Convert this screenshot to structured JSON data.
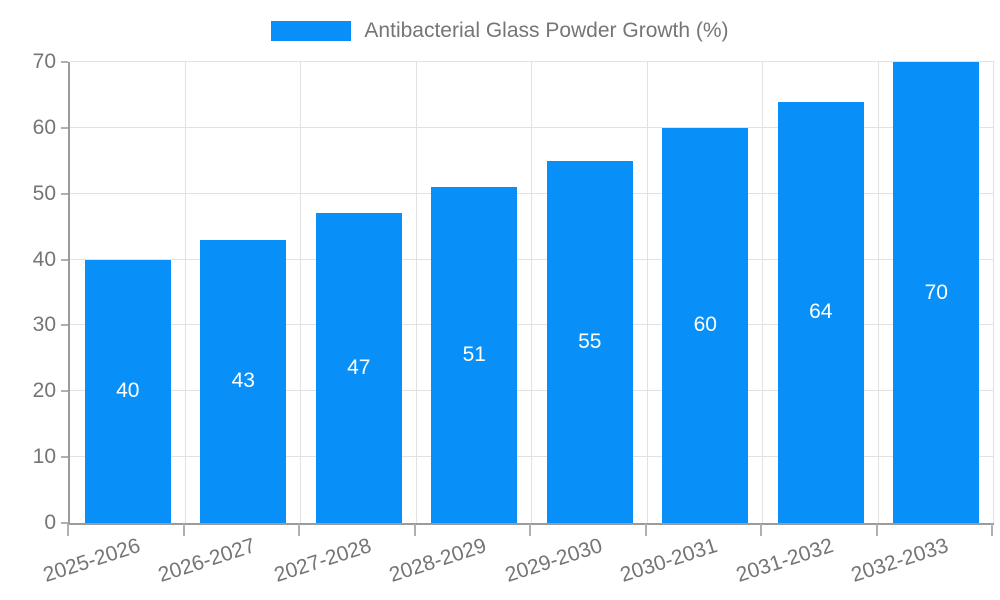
{
  "chart_data": {
    "type": "bar",
    "title": "Antibacterial Glass Powder Growth (%)",
    "categories": [
      "2025-2026",
      "2026-2027",
      "2027-2028",
      "2028-2029",
      "2029-2030",
      "2030-2031",
      "2031-2032",
      "2032-2033"
    ],
    "values": [
      40,
      43,
      47,
      51,
      55,
      60,
      64,
      70
    ],
    "value_labels": [
      "40",
      "43",
      "47",
      "51",
      "55",
      "60",
      "64",
      "70"
    ],
    "xlabel": "",
    "ylabel": "",
    "ylim": [
      0,
      70
    ],
    "ytick_step": 10,
    "ytick_labels": [
      "0",
      "10",
      "20",
      "30",
      "40",
      "50",
      "60",
      "70"
    ],
    "grid": "on",
    "legend_position": "top",
    "bar_color": "#0890f8",
    "value_label_color": "#ffffff",
    "tick_label_color": "#757575",
    "gridline_color": "#e2e2e2",
    "axis_color": "#9b9b9b"
  }
}
